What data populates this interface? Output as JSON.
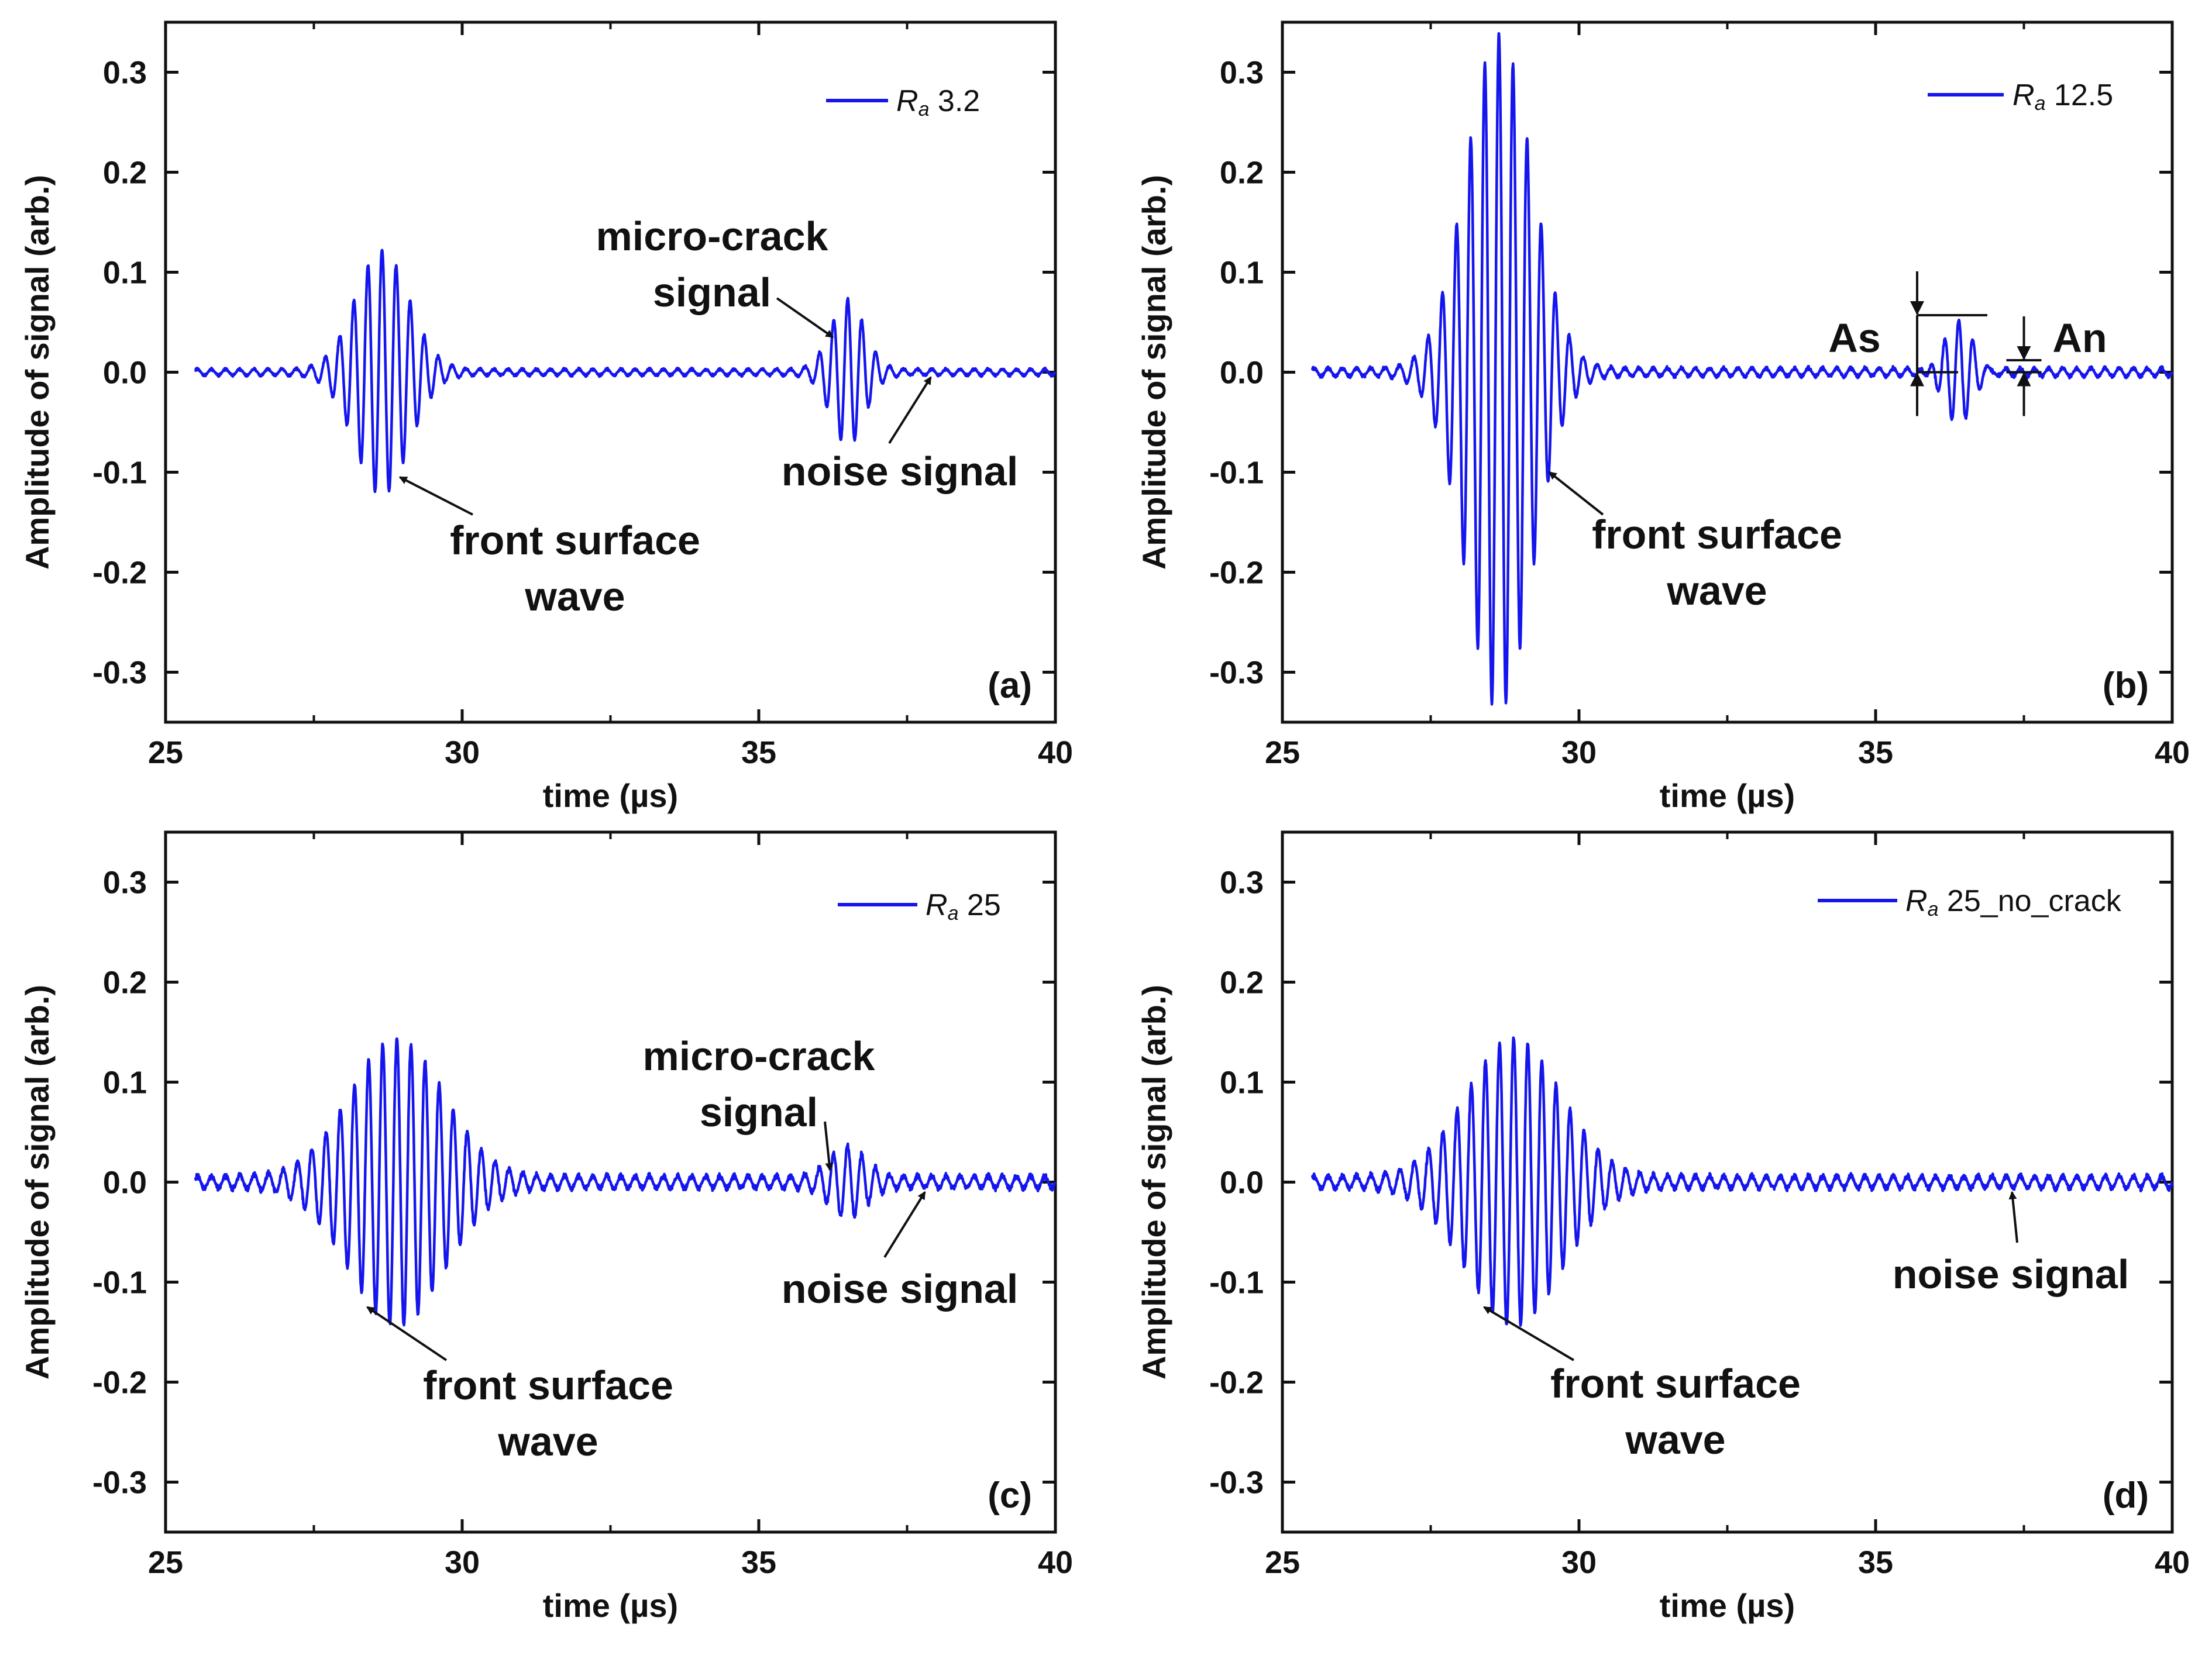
{
  "chart_data": [
    {
      "type": "line",
      "panel_label": "(a)",
      "xlabel": "time (µs)",
      "ylabel": "Amplitude of signal (arb.)",
      "xlim": [
        25,
        40
      ],
      "ylim": [
        -0.35,
        0.35
      ],
      "xticks": [
        25,
        30,
        35,
        40
      ],
      "yticks": [
        -0.3,
        -0.2,
        -0.1,
        0.0,
        0.1,
        0.2,
        0.3
      ],
      "ytick_labels": [
        "-0.3",
        "-0.2",
        "-0.1",
        "0.0",
        "0.1",
        "0.2",
        "0.3"
      ],
      "legend": {
        "symbol": "R",
        "subscript": "a",
        "label": " 3.2"
      },
      "series": [
        {
          "name": "Ra 3.2",
          "color": "#1515ee",
          "x_start": 25.5,
          "x_end": 40,
          "bursts": [
            {
              "t0": 28.65,
              "amp": 0.12,
              "sigma": 0.45
            },
            {
              "t0": 36.5,
              "amp": 0.07,
              "sigma": 0.28
            }
          ],
          "noise_amp": 0.003
        }
      ],
      "annotations": [
        {
          "lines": [
            "front surface",
            "wave"
          ],
          "arrow_tip": [
            28.95,
            -0.105
          ]
        },
        {
          "lines": [
            "micro-crack",
            "signal"
          ],
          "arrow_tip": [
            36.25,
            0.035
          ]
        },
        {
          "lines": [
            "noise signal"
          ],
          "arrow_tip": [
            37.9,
            -0.005
          ]
        }
      ]
    },
    {
      "type": "line",
      "panel_label": "(b)",
      "xlabel": "time (µs)",
      "ylabel": "Amplitude of signal (arb.)",
      "xlim": [
        25,
        40
      ],
      "ylim": [
        -0.35,
        0.35
      ],
      "xticks": [
        25,
        30,
        35,
        40
      ],
      "yticks": [
        -0.3,
        -0.2,
        -0.1,
        0.0,
        0.1,
        0.2,
        0.3
      ],
      "ytick_labels": [
        "-0.3",
        "-0.2",
        "-0.1",
        "0.0",
        "0.1",
        "0.2",
        "0.3"
      ],
      "legend": {
        "symbol": "R",
        "subscript": "a",
        "label": " 12.5"
      },
      "series": [
        {
          "name": "Ra 12.5",
          "color": "#1515ee",
          "x_start": 25.5,
          "x_end": 40,
          "bursts": [
            {
              "t0": 28.65,
              "amp": 0.335,
              "sigma": 0.55
            },
            {
              "t0": 36.4,
              "amp": 0.055,
              "sigma": 0.25
            }
          ],
          "noise_amp": 0.004
        }
      ],
      "annotations": [
        {
          "lines": [
            "front surface",
            "wave"
          ],
          "arrow_tip": [
            29.5,
            -0.1
          ]
        },
        {
          "lines": [
            "As"
          ],
          "arrow_tip": null
        },
        {
          "lines": [
            "An"
          ],
          "arrow_tip": null
        }
      ],
      "markers": {
        "as_top": 0.057,
        "an_top": 0.012,
        "as_x": 35.7,
        "an_x": 37.5
      }
    },
    {
      "type": "line",
      "panel_label": "(c)",
      "xlabel": "time (µs)",
      "ylabel": "Amplitude of signal (arb.)",
      "xlim": [
        25,
        40
      ],
      "ylim": [
        -0.35,
        0.35
      ],
      "xticks": [
        25,
        30,
        35,
        40
      ],
      "yticks": [
        -0.3,
        -0.2,
        -0.1,
        0.0,
        0.1,
        0.2,
        0.3
      ],
      "ytick_labels": [
        "-0.3",
        "-0.2",
        "-0.1",
        "0.0",
        "0.1",
        "0.2",
        "0.3"
      ],
      "legend": {
        "symbol": "R",
        "subscript": "a",
        "label": " 25"
      },
      "series": [
        {
          "name": "Ra 25",
          "color": "#1515ee",
          "x_start": 25.5,
          "x_end": 40,
          "bursts": [
            {
              "t0": 28.9,
              "amp": 0.14,
              "sigma": 0.8
            },
            {
              "t0": 36.5,
              "amp": 0.03,
              "sigma": 0.3
            }
          ],
          "noise_amp": 0.006
        }
      ],
      "annotations": [
        {
          "lines": [
            "front surface",
            "wave"
          ],
          "arrow_tip": [
            28.4,
            -0.125
          ]
        },
        {
          "lines": [
            "micro-crack",
            "signal"
          ],
          "arrow_tip": [
            36.2,
            0.012
          ]
        },
        {
          "lines": [
            "noise signal"
          ],
          "arrow_tip": [
            37.8,
            -0.01
          ]
        }
      ]
    },
    {
      "type": "line",
      "panel_label": "(d)",
      "xlabel": "time (µs)",
      "ylabel": "Amplitude of signal (arb.)",
      "xlim": [
        25,
        40
      ],
      "ylim": [
        -0.35,
        0.35
      ],
      "xticks": [
        25,
        30,
        35,
        40
      ],
      "yticks": [
        -0.3,
        -0.2,
        -0.1,
        0.0,
        0.1,
        0.2,
        0.3
      ],
      "ytick_labels": [
        "-0.3",
        "-0.2",
        "-0.1",
        "0.0",
        "0.1",
        "0.2",
        "0.3"
      ],
      "legend": {
        "symbol": "R",
        "subscript": "a",
        "label": " 25_no_crack"
      },
      "series": [
        {
          "name": "Ra 25_no_crack",
          "color": "#1515ee",
          "x_start": 25.5,
          "x_end": 40,
          "bursts": [
            {
              "t0": 28.9,
              "amp": 0.14,
              "sigma": 0.8
            }
          ],
          "noise_amp": 0.006
        }
      ],
      "annotations": [
        {
          "lines": [
            "front surface",
            "wave"
          ],
          "arrow_tip": [
            28.4,
            -0.125
          ]
        },
        {
          "lines": [
            "noise signal"
          ],
          "arrow_tip": [
            37.3,
            -0.01
          ]
        }
      ]
    }
  ]
}
